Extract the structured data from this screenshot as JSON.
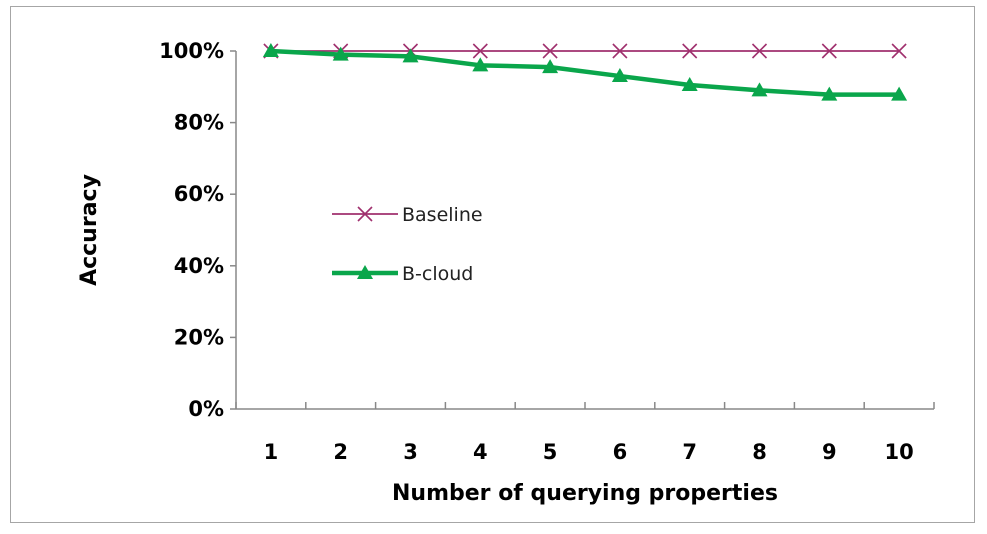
{
  "chart_data": {
    "type": "line",
    "categories": [
      "1",
      "2",
      "3",
      "4",
      "5",
      "6",
      "7",
      "8",
      "9",
      "10"
    ],
    "series": [
      {
        "name": "Baseline",
        "values": [
          1.0,
          1.0,
          1.0,
          1.0,
          1.0,
          1.0,
          1.0,
          1.0,
          1.0,
          1.0
        ],
        "color": "#a0306e",
        "marker": "x-icon"
      },
      {
        "name": "B-cloud",
        "values": [
          1.0,
          0.99,
          0.985,
          0.96,
          0.955,
          0.93,
          0.905,
          0.89,
          0.878,
          0.878
        ],
        "color": "#0aa64b",
        "marker": "triangle-icon"
      }
    ],
    "xlabel": "Number of querying properties",
    "ylabel": "Accuracy",
    "ylim": [
      0,
      1
    ],
    "yticks": [
      "0%",
      "20%",
      "40%",
      "60%",
      "80%",
      "100%"
    ],
    "grid": false,
    "legend_position": "center-left"
  }
}
